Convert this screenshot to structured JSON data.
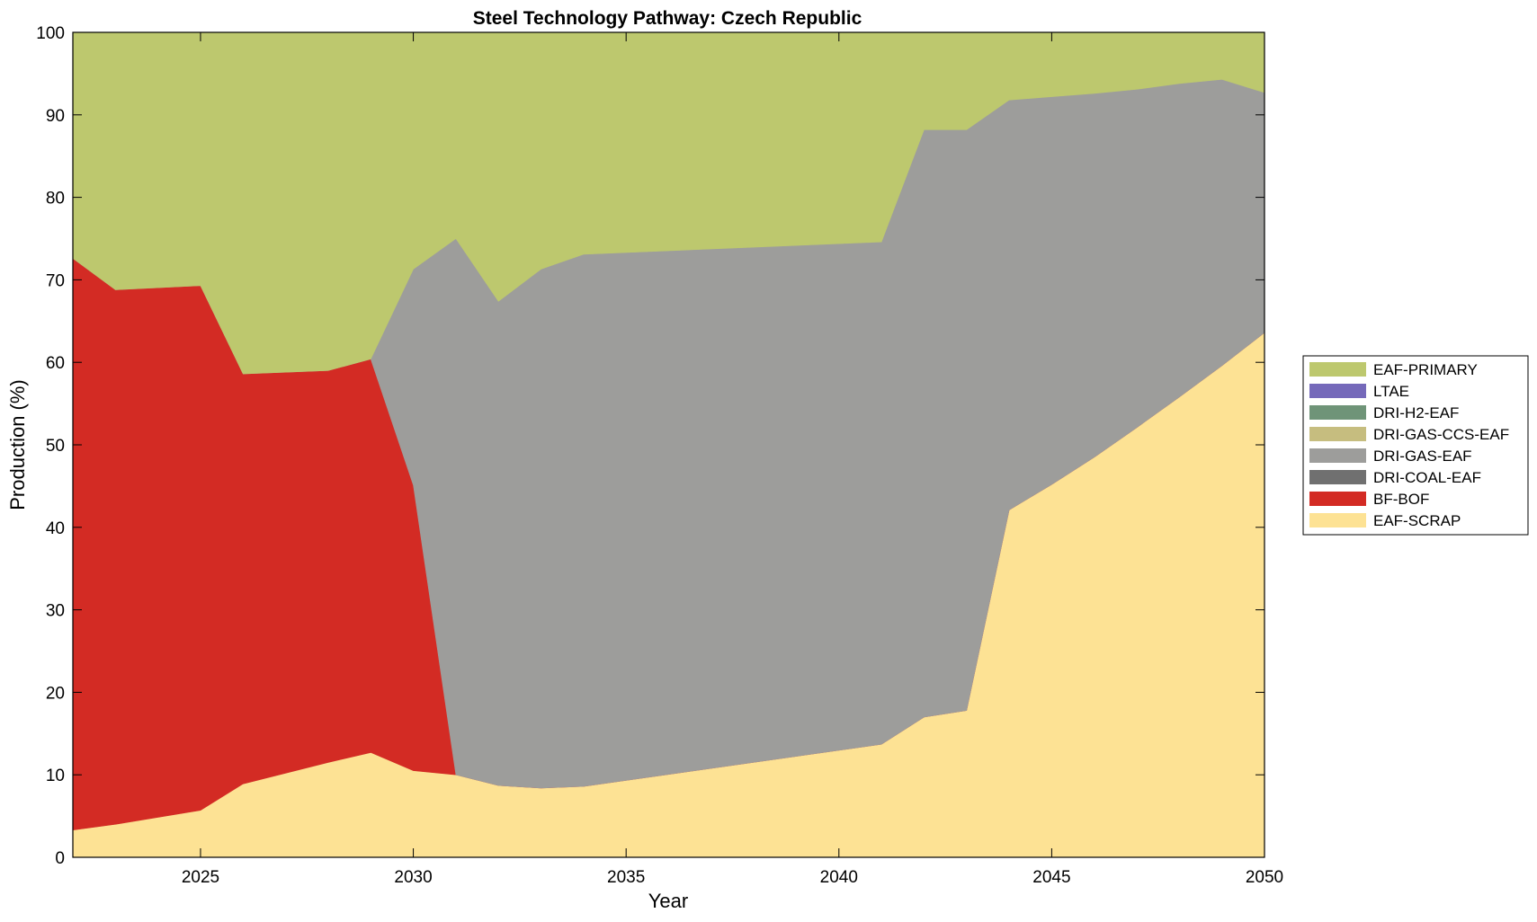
{
  "chart_data": {
    "type": "area",
    "stacked": true,
    "title": "Steel Technology Pathway: Czech Republic",
    "xlabel": "Year",
    "ylabel": "Production (%)",
    "xlim": [
      2022,
      2050
    ],
    "ylim": [
      0,
      100
    ],
    "xticks": [
      2025,
      2030,
      2035,
      2040,
      2045,
      2050
    ],
    "yticks": [
      0,
      10,
      20,
      30,
      40,
      50,
      60,
      70,
      80,
      90,
      100
    ],
    "grid": false,
    "legend_position": "right",
    "x": [
      2022,
      2023,
      2025,
      2026,
      2028,
      2029,
      2030,
      2031,
      2032,
      2033,
      2034,
      2041,
      2042,
      2043,
      2044,
      2045,
      2046,
      2047,
      2048,
      2049,
      2050
    ],
    "series": [
      {
        "name": "EAF-SCRAP",
        "color": "#FDE294",
        "values": [
          3.3,
          4.0,
          5.7,
          8.9,
          11.5,
          12.7,
          10.5,
          10.0,
          8.7,
          8.4,
          8.6,
          13.7,
          17.0,
          17.8,
          42.1,
          45.2,
          48.5,
          52.1,
          55.8,
          59.6,
          63.6
        ]
      },
      {
        "name": "BF-BOF",
        "color": "#D32B24",
        "values": [
          69.3,
          64.8,
          63.6,
          49.7,
          47.5,
          47.7,
          34.6,
          0,
          0,
          0,
          0,
          0,
          0,
          0,
          0,
          0,
          0,
          0,
          0,
          0,
          0
        ]
      },
      {
        "name": "DRI-COAL-EAF",
        "color": "#707070",
        "values": [
          0,
          0,
          0,
          0,
          0,
          0,
          0,
          0,
          0,
          0,
          0,
          0,
          0,
          0,
          0,
          0,
          0,
          0,
          0,
          0,
          0
        ]
      },
      {
        "name": "DRI-GAS-EAF",
        "color": "#9D9D9B",
        "values": [
          0,
          0,
          0,
          0,
          0,
          0,
          26.2,
          65.0,
          58.7,
          62.9,
          64.5,
          60.9,
          71.2,
          70.4,
          49.7,
          47.0,
          44.1,
          41.0,
          38.0,
          34.7,
          29.1
        ]
      },
      {
        "name": "DRI-GAS-CCS-EAF",
        "color": "#C6BD7F",
        "values": [
          0,
          0,
          0,
          0,
          0,
          0,
          0,
          0,
          0,
          0,
          0,
          0,
          0,
          0,
          0,
          0,
          0,
          0,
          0,
          0,
          0
        ]
      },
      {
        "name": "DRI-H2-EAF",
        "color": "#6F9478",
        "values": [
          0,
          0,
          0,
          0,
          0,
          0,
          0,
          0,
          0,
          0,
          0,
          0,
          0,
          0,
          0,
          0,
          0,
          0,
          0,
          0,
          0
        ]
      },
      {
        "name": "LTAE",
        "color": "#7569BA",
        "values": [
          0,
          0,
          0,
          0,
          0,
          0,
          0,
          0,
          0,
          0,
          0,
          0,
          0,
          0,
          0,
          0,
          0,
          0,
          0,
          0,
          0
        ]
      },
      {
        "name": "EAF-PRIMARY",
        "color": "#BDC86E",
        "values": [
          27.4,
          31.2,
          30.7,
          41.4,
          41.0,
          39.6,
          28.7,
          25.0,
          32.6,
          28.7,
          26.9,
          25.4,
          11.8,
          11.8,
          8.2,
          7.8,
          7.4,
          6.9,
          6.2,
          5.7,
          7.3
        ]
      }
    ],
    "legend_order": [
      "EAF-PRIMARY",
      "LTAE",
      "DRI-H2-EAF",
      "DRI-GAS-CCS-EAF",
      "DRI-GAS-EAF",
      "DRI-COAL-EAF",
      "BF-BOF",
      "EAF-SCRAP"
    ]
  }
}
